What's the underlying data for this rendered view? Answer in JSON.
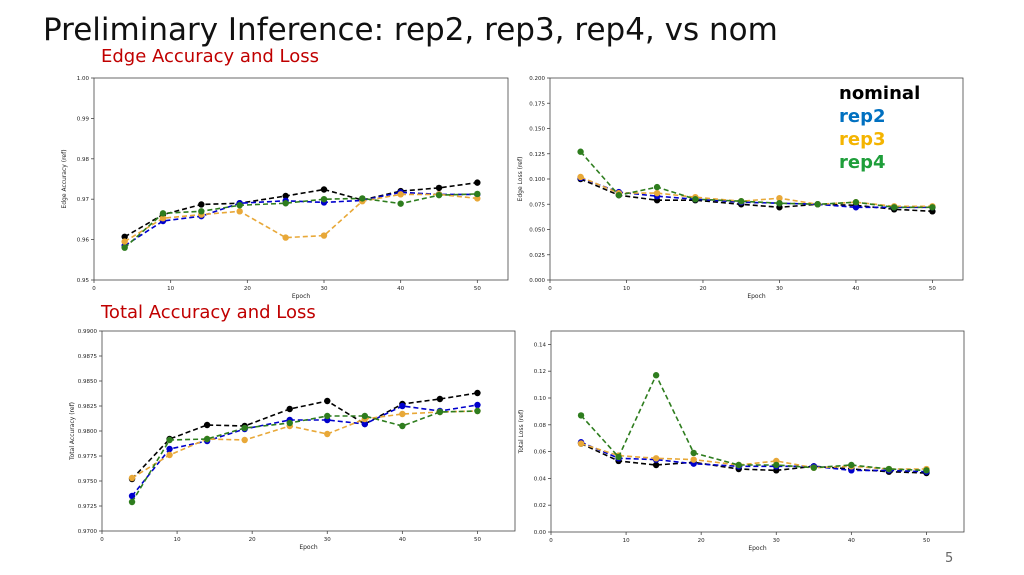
{
  "slide": {
    "title": "Preliminary Inference: rep2, rep3, rep4, vs nom",
    "section1": "Edge Accuracy and Loss",
    "section2": "Total Accuracy and Loss",
    "page_number": "5"
  },
  "legend": [
    {
      "label": "nominal",
      "color": "#000000"
    },
    {
      "label": "rep2",
      "color": "#0070c0"
    },
    {
      "label": "rep3",
      "color": "#f4b400"
    },
    {
      "label": "rep4",
      "color": "#1e9e3a"
    }
  ],
  "series_colors": {
    "nominal": "#000000",
    "rep2": "#0000cc",
    "rep3": "#e8a838",
    "rep4": "#2e7d1e"
  },
  "chart_data": [
    {
      "type": "line",
      "xlabel": "Epoch",
      "ylabel": "Edge Accuracy (ref)",
      "xlim": [
        0,
        54
      ],
      "ylim": [
        0.95,
        1.0
      ],
      "xticks": [
        0,
        10,
        20,
        30,
        40,
        50
      ],
      "yticks": [
        0.95,
        0.96,
        0.97,
        0.98,
        0.99,
        1.0
      ],
      "ytick_labels": [
        "0.95",
        "0.96",
        "0.97",
        "0.98",
        "0.99",
        "1.00"
      ],
      "x": [
        4,
        9,
        14,
        19,
        25,
        30,
        35,
        40,
        45,
        50
      ],
      "series": [
        {
          "key": "nominal",
          "values": [
            0.9607,
            0.9662,
            0.9687,
            0.969,
            0.9708,
            0.9724,
            0.9698,
            0.972,
            0.9728,
            0.9741
          ]
        },
        {
          "key": "rep2",
          "values": [
            0.9585,
            0.9646,
            0.9658,
            0.969,
            0.9696,
            0.9692,
            0.9697,
            0.9717,
            0.9712,
            0.9712
          ]
        },
        {
          "key": "rep3",
          "values": [
            0.9595,
            0.9653,
            0.9662,
            0.967,
            0.9605,
            0.961,
            0.9695,
            0.9712,
            0.9712,
            0.9702
          ]
        },
        {
          "key": "rep4",
          "values": [
            0.958,
            0.9665,
            0.967,
            0.9685,
            0.969,
            0.97,
            0.9702,
            0.9689,
            0.971,
            0.9713
          ]
        }
      ]
    },
    {
      "type": "line",
      "xlabel": "Epoch",
      "ylabel": "Edge Loss (ref)",
      "xlim": [
        0,
        54
      ],
      "ylim": [
        0.0,
        0.2
      ],
      "xticks": [
        0,
        10,
        20,
        30,
        40,
        50
      ],
      "yticks": [
        0.0,
        0.025,
        0.05,
        0.075,
        0.1,
        0.125,
        0.15,
        0.175,
        0.2
      ],
      "ytick_labels": [
        "0.000",
        "0.025",
        "0.050",
        "0.075",
        "0.100",
        "0.125",
        "0.150",
        "0.175",
        "0.200"
      ],
      "x": [
        4,
        9,
        14,
        19,
        25,
        30,
        35,
        40,
        45,
        50
      ],
      "series": [
        {
          "key": "nominal",
          "values": [
            0.1,
            0.084,
            0.079,
            0.079,
            0.075,
            0.072,
            0.075,
            0.074,
            0.07,
            0.068
          ]
        },
        {
          "key": "rep2",
          "values": [
            0.101,
            0.087,
            0.083,
            0.08,
            0.077,
            0.076,
            0.075,
            0.072,
            0.072,
            0.072
          ]
        },
        {
          "key": "rep3",
          "values": [
            0.102,
            0.086,
            0.086,
            0.082,
            0.078,
            0.081,
            0.075,
            0.077,
            0.073,
            0.073
          ]
        },
        {
          "key": "rep4",
          "values": [
            0.127,
            0.084,
            0.092,
            0.08,
            0.078,
            0.076,
            0.075,
            0.077,
            0.072,
            0.072
          ]
        }
      ]
    },
    {
      "type": "line",
      "xlabel": "Epoch",
      "ylabel": "Total Accuracy (ref)",
      "xlim": [
        0,
        55
      ],
      "ylim": [
        0.97,
        0.99
      ],
      "xticks": [
        0,
        10,
        20,
        30,
        40,
        50
      ],
      "yticks": [
        0.97,
        0.9725,
        0.975,
        0.9775,
        0.98,
        0.9825,
        0.985,
        0.9875,
        0.99
      ],
      "ytick_labels": [
        "0.9700",
        "0.9725",
        "0.9750",
        "0.9775",
        "0.9800",
        "0.9825",
        "0.9850",
        "0.9875",
        "0.9900"
      ],
      "x": [
        4,
        9,
        14,
        19,
        25,
        30,
        35,
        40,
        45,
        50
      ],
      "series": [
        {
          "key": "nominal",
          "values": [
            0.9752,
            0.9792,
            0.9806,
            0.9805,
            0.9822,
            0.983,
            0.9807,
            0.9827,
            0.9832,
            0.9838
          ]
        },
        {
          "key": "rep2",
          "values": [
            0.9735,
            0.9782,
            0.979,
            0.9802,
            0.9811,
            0.9811,
            0.9807,
            0.9825,
            0.982,
            0.9826
          ]
        },
        {
          "key": "rep3",
          "values": [
            0.9753,
            0.9776,
            0.9792,
            0.9791,
            0.9805,
            0.9797,
            0.9812,
            0.9817,
            0.9819,
            0.982
          ]
        },
        {
          "key": "rep4",
          "values": [
            0.9729,
            0.9791,
            0.9792,
            0.9803,
            0.9808,
            0.9815,
            0.9815,
            0.9805,
            0.9819,
            0.982
          ]
        }
      ]
    },
    {
      "type": "line",
      "xlabel": "Epoch",
      "ylabel": "Total Loss (ref)",
      "xlim": [
        0,
        55
      ],
      "ylim": [
        0.0,
        0.15
      ],
      "xticks": [
        0,
        10,
        20,
        30,
        40,
        50
      ],
      "yticks": [
        0.0,
        0.02,
        0.04,
        0.06,
        0.08,
        0.1,
        0.12,
        0.14
      ],
      "ytick_labels": [
        "0.00",
        "0.02",
        "0.04",
        "0.06",
        "0.08",
        "0.10",
        "0.12",
        "0.14"
      ],
      "x": [
        4,
        9,
        14,
        19,
        25,
        30,
        35,
        40,
        45,
        50
      ],
      "series": [
        {
          "key": "nominal",
          "values": [
            0.066,
            0.053,
            0.05,
            0.052,
            0.047,
            0.046,
            0.049,
            0.047,
            0.045,
            0.044
          ]
        },
        {
          "key": "rep2",
          "values": [
            0.067,
            0.055,
            0.054,
            0.051,
            0.049,
            0.049,
            0.049,
            0.046,
            0.046,
            0.045
          ]
        },
        {
          "key": "rep3",
          "values": [
            0.066,
            0.057,
            0.055,
            0.054,
            0.05,
            0.053,
            0.048,
            0.049,
            0.047,
            0.047
          ]
        },
        {
          "key": "rep4",
          "values": [
            0.087,
            0.056,
            0.117,
            0.059,
            0.05,
            0.05,
            0.048,
            0.05,
            0.047,
            0.046
          ]
        }
      ]
    }
  ]
}
